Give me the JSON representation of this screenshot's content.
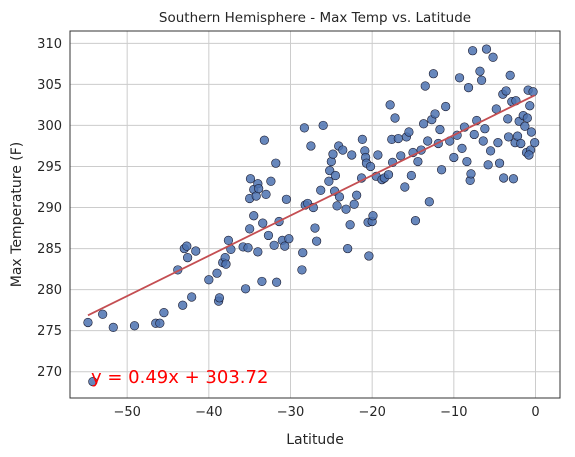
{
  "chart_data": {
    "type": "scatter",
    "title": "Southern Hemisphere - Max Temp vs. Latitude",
    "xlabel": "Latitude",
    "ylabel": "Max Temperature (F)",
    "xlim": [
      -57,
      3
    ],
    "ylim": [
      266.8,
      311.5
    ],
    "xticks": [
      -50,
      -40,
      -30,
      -20,
      -10,
      0
    ],
    "yticks": [
      270,
      275,
      280,
      285,
      290,
      295,
      300,
      305,
      310
    ],
    "grid": true,
    "colors": {
      "points": "#4c72b0",
      "point_edge": "#1a1a2e",
      "regression": "#c44e52",
      "equation": "#ff0000",
      "grid": "#cccccc",
      "axes": "#333333"
    },
    "regression": {
      "slope": 0.49,
      "intercept": 303.72,
      "x_range": [
        -54.8,
        -0.1
      ],
      "equation_label": "y = 0.49x + 303.72"
    },
    "points": [
      [
        -54.8,
        276.0
      ],
      [
        -54.2,
        268.8
      ],
      [
        -53.0,
        277.0
      ],
      [
        -51.7,
        275.4
      ],
      [
        -49.1,
        275.6
      ],
      [
        -46.5,
        275.9
      ],
      [
        -46.0,
        275.9
      ],
      [
        -45.5,
        277.2
      ],
      [
        -43.8,
        282.4
      ],
      [
        -43.2,
        278.1
      ],
      [
        -43.0,
        285.0
      ],
      [
        -42.7,
        285.3
      ],
      [
        -42.6,
        283.9
      ],
      [
        -42.1,
        279.1
      ],
      [
        -41.6,
        284.7
      ],
      [
        -40.0,
        281.2
      ],
      [
        -39.0,
        282.0
      ],
      [
        -38.8,
        278.6
      ],
      [
        -38.7,
        279.0
      ],
      [
        -38.3,
        283.3
      ],
      [
        -38.0,
        283.9
      ],
      [
        -37.9,
        283.1
      ],
      [
        -37.6,
        286.0
      ],
      [
        -37.3,
        284.9
      ],
      [
        -35.8,
        285.2
      ],
      [
        -35.5,
        280.1
      ],
      [
        -35.2,
        285.1
      ],
      [
        -35.0,
        291.1
      ],
      [
        -35.0,
        287.4
      ],
      [
        -34.9,
        293.5
      ],
      [
        -34.5,
        289.0
      ],
      [
        -34.5,
        292.2
      ],
      [
        -34.2,
        291.4
      ],
      [
        -34.0,
        292.9
      ],
      [
        -34.0,
        284.6
      ],
      [
        -33.9,
        292.3
      ],
      [
        -33.5,
        281.0
      ],
      [
        -33.4,
        288.1
      ],
      [
        -33.2,
        298.2
      ],
      [
        -33.0,
        291.6
      ],
      [
        -32.7,
        286.6
      ],
      [
        -32.4,
        293.2
      ],
      [
        -32.0,
        285.4
      ],
      [
        -31.8,
        295.4
      ],
      [
        -31.7,
        280.9
      ],
      [
        -31.4,
        288.3
      ],
      [
        -31.0,
        286.0
      ],
      [
        -30.7,
        285.3
      ],
      [
        -30.5,
        291.0
      ],
      [
        -30.2,
        286.2
      ],
      [
        -28.6,
        282.4
      ],
      [
        -28.5,
        284.5
      ],
      [
        -28.3,
        299.7
      ],
      [
        -28.2,
        290.3
      ],
      [
        -27.9,
        290.5
      ],
      [
        -27.5,
        297.5
      ],
      [
        -27.2,
        290.0
      ],
      [
        -27.0,
        287.5
      ],
      [
        -26.8,
        285.9
      ],
      [
        -26.3,
        292.1
      ],
      [
        -26.0,
        300.0
      ],
      [
        -25.3,
        293.2
      ],
      [
        -25.2,
        294.5
      ],
      [
        -25.0,
        295.6
      ],
      [
        -24.8,
        296.5
      ],
      [
        -24.6,
        292.0
      ],
      [
        -24.5,
        293.9
      ],
      [
        -24.3,
        290.2
      ],
      [
        -24.1,
        297.5
      ],
      [
        -24.0,
        291.3
      ],
      [
        -23.6,
        297.0
      ],
      [
        -23.2,
        289.8
      ],
      [
        -23.0,
        285.0
      ],
      [
        -22.7,
        287.9
      ],
      [
        -22.5,
        296.4
      ],
      [
        -22.2,
        290.4
      ],
      [
        -21.9,
        291.5
      ],
      [
        -21.3,
        293.6
      ],
      [
        -21.2,
        298.3
      ],
      [
        -20.9,
        296.9
      ],
      [
        -20.8,
        296.1
      ],
      [
        -20.7,
        295.4
      ],
      [
        -20.5,
        288.2
      ],
      [
        -20.4,
        284.1
      ],
      [
        -20.2,
        295.0
      ],
      [
        -20.0,
        288.3
      ],
      [
        -19.9,
        289.0
      ],
      [
        -19.5,
        293.8
      ],
      [
        -19.3,
        296.4
      ],
      [
        -18.8,
        293.4
      ],
      [
        -18.5,
        293.6
      ],
      [
        -18.0,
        294.0
      ],
      [
        -17.8,
        302.5
      ],
      [
        -17.6,
        298.3
      ],
      [
        -17.5,
        295.5
      ],
      [
        -17.2,
        300.9
      ],
      [
        -16.8,
        298.4
      ],
      [
        -16.5,
        296.3
      ],
      [
        -16.0,
        292.5
      ],
      [
        -15.8,
        298.6
      ],
      [
        -15.5,
        299.2
      ],
      [
        -15.2,
        293.9
      ],
      [
        -15.0,
        296.7
      ],
      [
        -14.7,
        288.4
      ],
      [
        -14.4,
        295.6
      ],
      [
        -14.0,
        297.0
      ],
      [
        -13.7,
        300.2
      ],
      [
        -13.5,
        304.8
      ],
      [
        -13.2,
        298.1
      ],
      [
        -13.0,
        290.7
      ],
      [
        -12.7,
        300.7
      ],
      [
        -12.5,
        306.3
      ],
      [
        -12.3,
        301.4
      ],
      [
        -11.9,
        297.8
      ],
      [
        -11.7,
        299.5
      ],
      [
        -11.5,
        294.6
      ],
      [
        -11.0,
        302.3
      ],
      [
        -10.5,
        298.1
      ],
      [
        -10.0,
        296.1
      ],
      [
        -9.6,
        298.8
      ],
      [
        -9.3,
        305.8
      ],
      [
        -9.0,
        297.2
      ],
      [
        -8.7,
        299.8
      ],
      [
        -8.4,
        295.6
      ],
      [
        -8.2,
        304.6
      ],
      [
        -8.0,
        293.3
      ],
      [
        -7.9,
        294.1
      ],
      [
        -7.7,
        309.1
      ],
      [
        -7.5,
        298.9
      ],
      [
        -7.2,
        300.6
      ],
      [
        -6.8,
        306.6
      ],
      [
        -6.6,
        305.5
      ],
      [
        -6.4,
        298.1
      ],
      [
        -6.2,
        299.6
      ],
      [
        -6.0,
        309.3
      ],
      [
        -5.8,
        295.2
      ],
      [
        -5.5,
        296.9
      ],
      [
        -5.2,
        308.3
      ],
      [
        -4.8,
        302.0
      ],
      [
        -4.6,
        297.9
      ],
      [
        -4.4,
        295.4
      ],
      [
        -4.0,
        303.8
      ],
      [
        -3.9,
        293.6
      ],
      [
        -3.6,
        304.2
      ],
      [
        -3.4,
        300.8
      ],
      [
        -3.3,
        298.6
      ],
      [
        -3.1,
        306.1
      ],
      [
        -2.9,
        302.9
      ],
      [
        -2.7,
        293.5
      ],
      [
        -2.5,
        297.9
      ],
      [
        -2.4,
        303.0
      ],
      [
        -2.2,
        298.7
      ],
      [
        -2.0,
        300.5
      ],
      [
        -1.8,
        297.8
      ],
      [
        -1.5,
        301.2
      ],
      [
        -1.3,
        299.9
      ],
      [
        -1.1,
        296.7
      ],
      [
        -0.9,
        304.3
      ],
      [
        -0.7,
        302.4
      ],
      [
        -0.6,
        297.0
      ],
      [
        -0.5,
        299.2
      ],
      [
        -0.3,
        304.1
      ],
      [
        -0.1,
        297.9
      ],
      [
        -1.0,
        300.9
      ],
      [
        -0.8,
        296.4
      ]
    ]
  }
}
